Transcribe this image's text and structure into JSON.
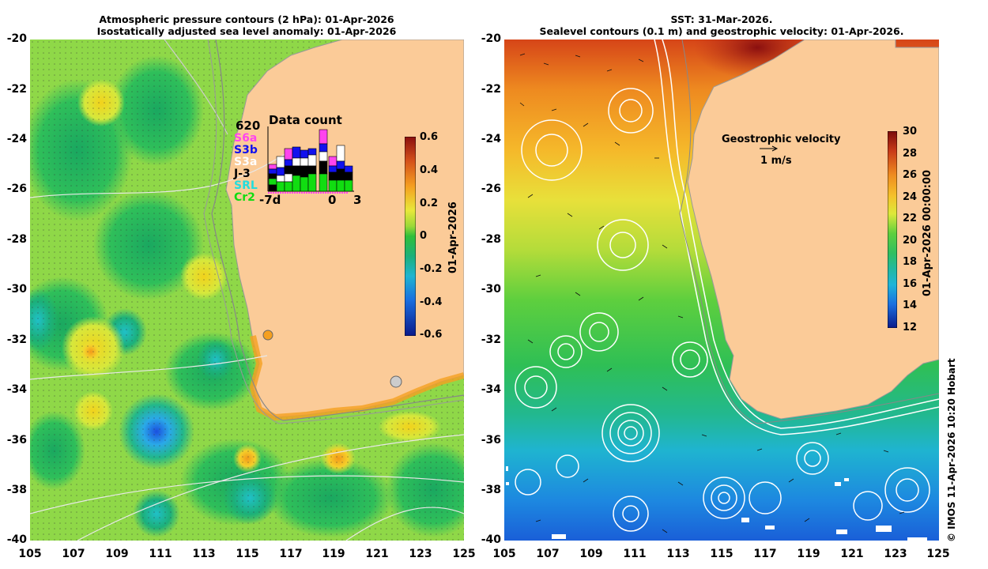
{
  "left_panel": {
    "title_line1": "Atmospheric pressure contours (2 hPa): 01-Apr-2026",
    "title_line2": "Isostatically adjusted sea level anomaly: 01-Apr-2026",
    "y_ticks": [
      "-20",
      "-22",
      "-24",
      "-26",
      "-28",
      "-30",
      "-32",
      "-34",
      "-36",
      "-38",
      "-40"
    ],
    "x_ticks": [
      "105",
      "107",
      "109",
      "111",
      "113",
      "115",
      "117",
      "119",
      "121",
      "123",
      "125"
    ],
    "colorbar": {
      "ticks": [
        "0.6",
        "0.4",
        "0.2",
        "0",
        "-0.2",
        "-0.4",
        "-0.6"
      ],
      "label": "01-Apr-2026"
    },
    "data_count": {
      "title": "Data count",
      "max": "620",
      "satellites": [
        {
          "name": "S6a",
          "color": "#ff44ee"
        },
        {
          "name": "S3b",
          "color": "#1111ee"
        },
        {
          "name": "S3a",
          "color": "#ffffff"
        },
        {
          "name": "J-3",
          "color": "#000000"
        },
        {
          "name": "SRL",
          "color": "#22dddd"
        },
        {
          "name": "Cr2",
          "color": "#11dd11"
        }
      ],
      "x_labels": [
        "-7d",
        "0",
        "3"
      ]
    }
  },
  "right_panel": {
    "title_line1": "SST: 31-Mar-2026.",
    "title_line2": "Sealevel contours (0.1 m) and geostrophic velocity: 01-Apr-2026.",
    "y_ticks": [
      "-20",
      "-22",
      "-24",
      "-26",
      "-28",
      "-30",
      "-32",
      "-34",
      "-36",
      "-38",
      "-40"
    ],
    "x_ticks": [
      "105",
      "107",
      "109",
      "111",
      "113",
      "115",
      "117",
      "119",
      "121",
      "123",
      "125"
    ],
    "colorbar": {
      "ticks": [
        "30",
        "28",
        "26",
        "24",
        "22",
        "20",
        "18",
        "16",
        "14",
        "12"
      ],
      "label": "01-Apr-2026 00:00:00"
    },
    "velocity_legend": {
      "title": "Geostrophic velocity",
      "scale": "1 m/s"
    }
  },
  "credit": "© IMOS 11-Apr-2026 10:20 Hobart",
  "colors": {
    "land": "#fbcb98",
    "coast": "#888888"
  }
}
